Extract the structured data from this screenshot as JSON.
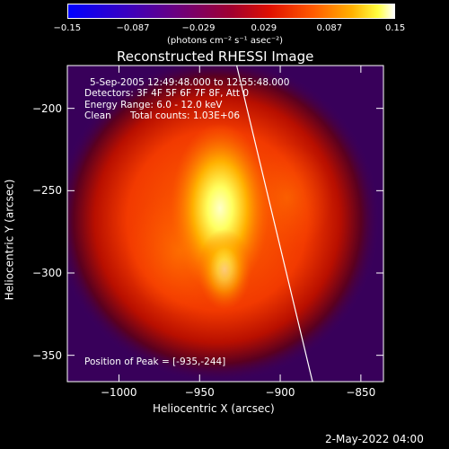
{
  "colorbar": {
    "ticks": [
      "−0.15",
      "−0.087",
      "−0.029",
      "0.029",
      "0.087",
      "0.15"
    ],
    "unit_label": "(photons cm⁻² s⁻¹ asec⁻²)"
  },
  "chart_data": {
    "type": "heatmap",
    "title": "Reconstructed RHESSI Image",
    "xlabel": "Heliocentric X (arcsec)",
    "ylabel": "Heliocentric Y (arcsec)",
    "xlim": [
      -1032,
      -836
    ],
    "ylim": [
      -366,
      -174
    ],
    "x_ticks": [
      "−1000",
      "−950",
      "−900",
      "−850"
    ],
    "x_tick_values": [
      -1000,
      -950,
      -900,
      -850
    ],
    "y_ticks": [
      "−200",
      "−250",
      "−300",
      "−350"
    ],
    "y_tick_values": [
      -200,
      -250,
      -300,
      -350
    ],
    "color_range": [
      -0.15,
      0.15
    ],
    "peak_position": [
      -935,
      -244
    ],
    "limb_line": [
      [
        -927,
        -174
      ],
      [
        -880,
        -366
      ]
    ],
    "annotations": {
      "time_range": "5-Sep-2005 12:49:48.000 to 12:55:48.000",
      "detectors": "Detectors: 3F 4F 5F 6F 7F 8F, Att 0",
      "energy": "Energy Range: 6.0 - 12.0 keV",
      "clean": "Clean",
      "total_counts": "Total counts: 1.03E+06",
      "peak": "Position of Peak = [-935,-244]"
    }
  },
  "footer": {
    "date": "2-May-2022 04:00"
  }
}
